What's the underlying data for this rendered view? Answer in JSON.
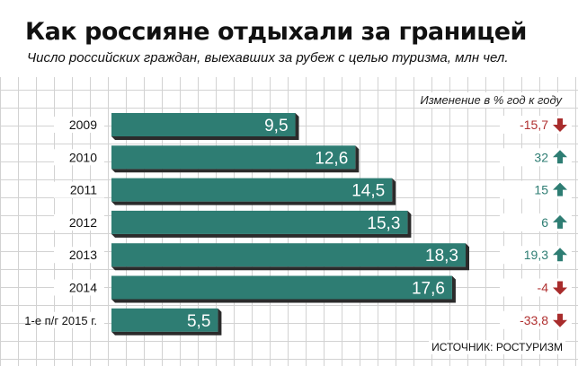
{
  "title": "Как россияне отдыхали за границей",
  "subtitle": "Число российских граждан, выехавших за рубеж с целью туризма, млн чел.",
  "change_header": "Изменение в % год к году",
  "source": "ИСТОЧНИК: РОСТУРИЗМ",
  "colors": {
    "bar": "#2e7d73",
    "bar_shadow": "#2b2b2b",
    "up": "#2e7d73",
    "down": "#a82c2c",
    "label_down": "#b03030",
    "label_up": "#2e7d73"
  },
  "chart_data": {
    "type": "bar",
    "orientation": "horizontal",
    "title": "Как россияне отдыхали за границей",
    "subtitle": "Число российских граждан, выехавших за рубеж с целью туризма, млн чел.",
    "categories": [
      "2009",
      "2010",
      "2011",
      "2012",
      "2013",
      "2014",
      "1-е п/г 2015 г."
    ],
    "values": [
      9.5,
      12.6,
      14.5,
      15.3,
      18.3,
      17.6,
      5.5
    ],
    "value_labels": [
      "9,5",
      "12,6",
      "14,5",
      "15,3",
      "18,3",
      "17,6",
      "5,5"
    ],
    "xlim": [
      0,
      18.3
    ],
    "change_series": {
      "name": "Изменение в % год к году",
      "values": [
        -15.7,
        32,
        15,
        6,
        19.3,
        -4,
        -33.8
      ],
      "labels": [
        "-15,7",
        "32",
        "15",
        "6",
        "19,3",
        "-4",
        "-33,8"
      ],
      "directions": [
        "down",
        "up",
        "up",
        "up",
        "up",
        "down",
        "down"
      ]
    },
    "grid": true
  }
}
